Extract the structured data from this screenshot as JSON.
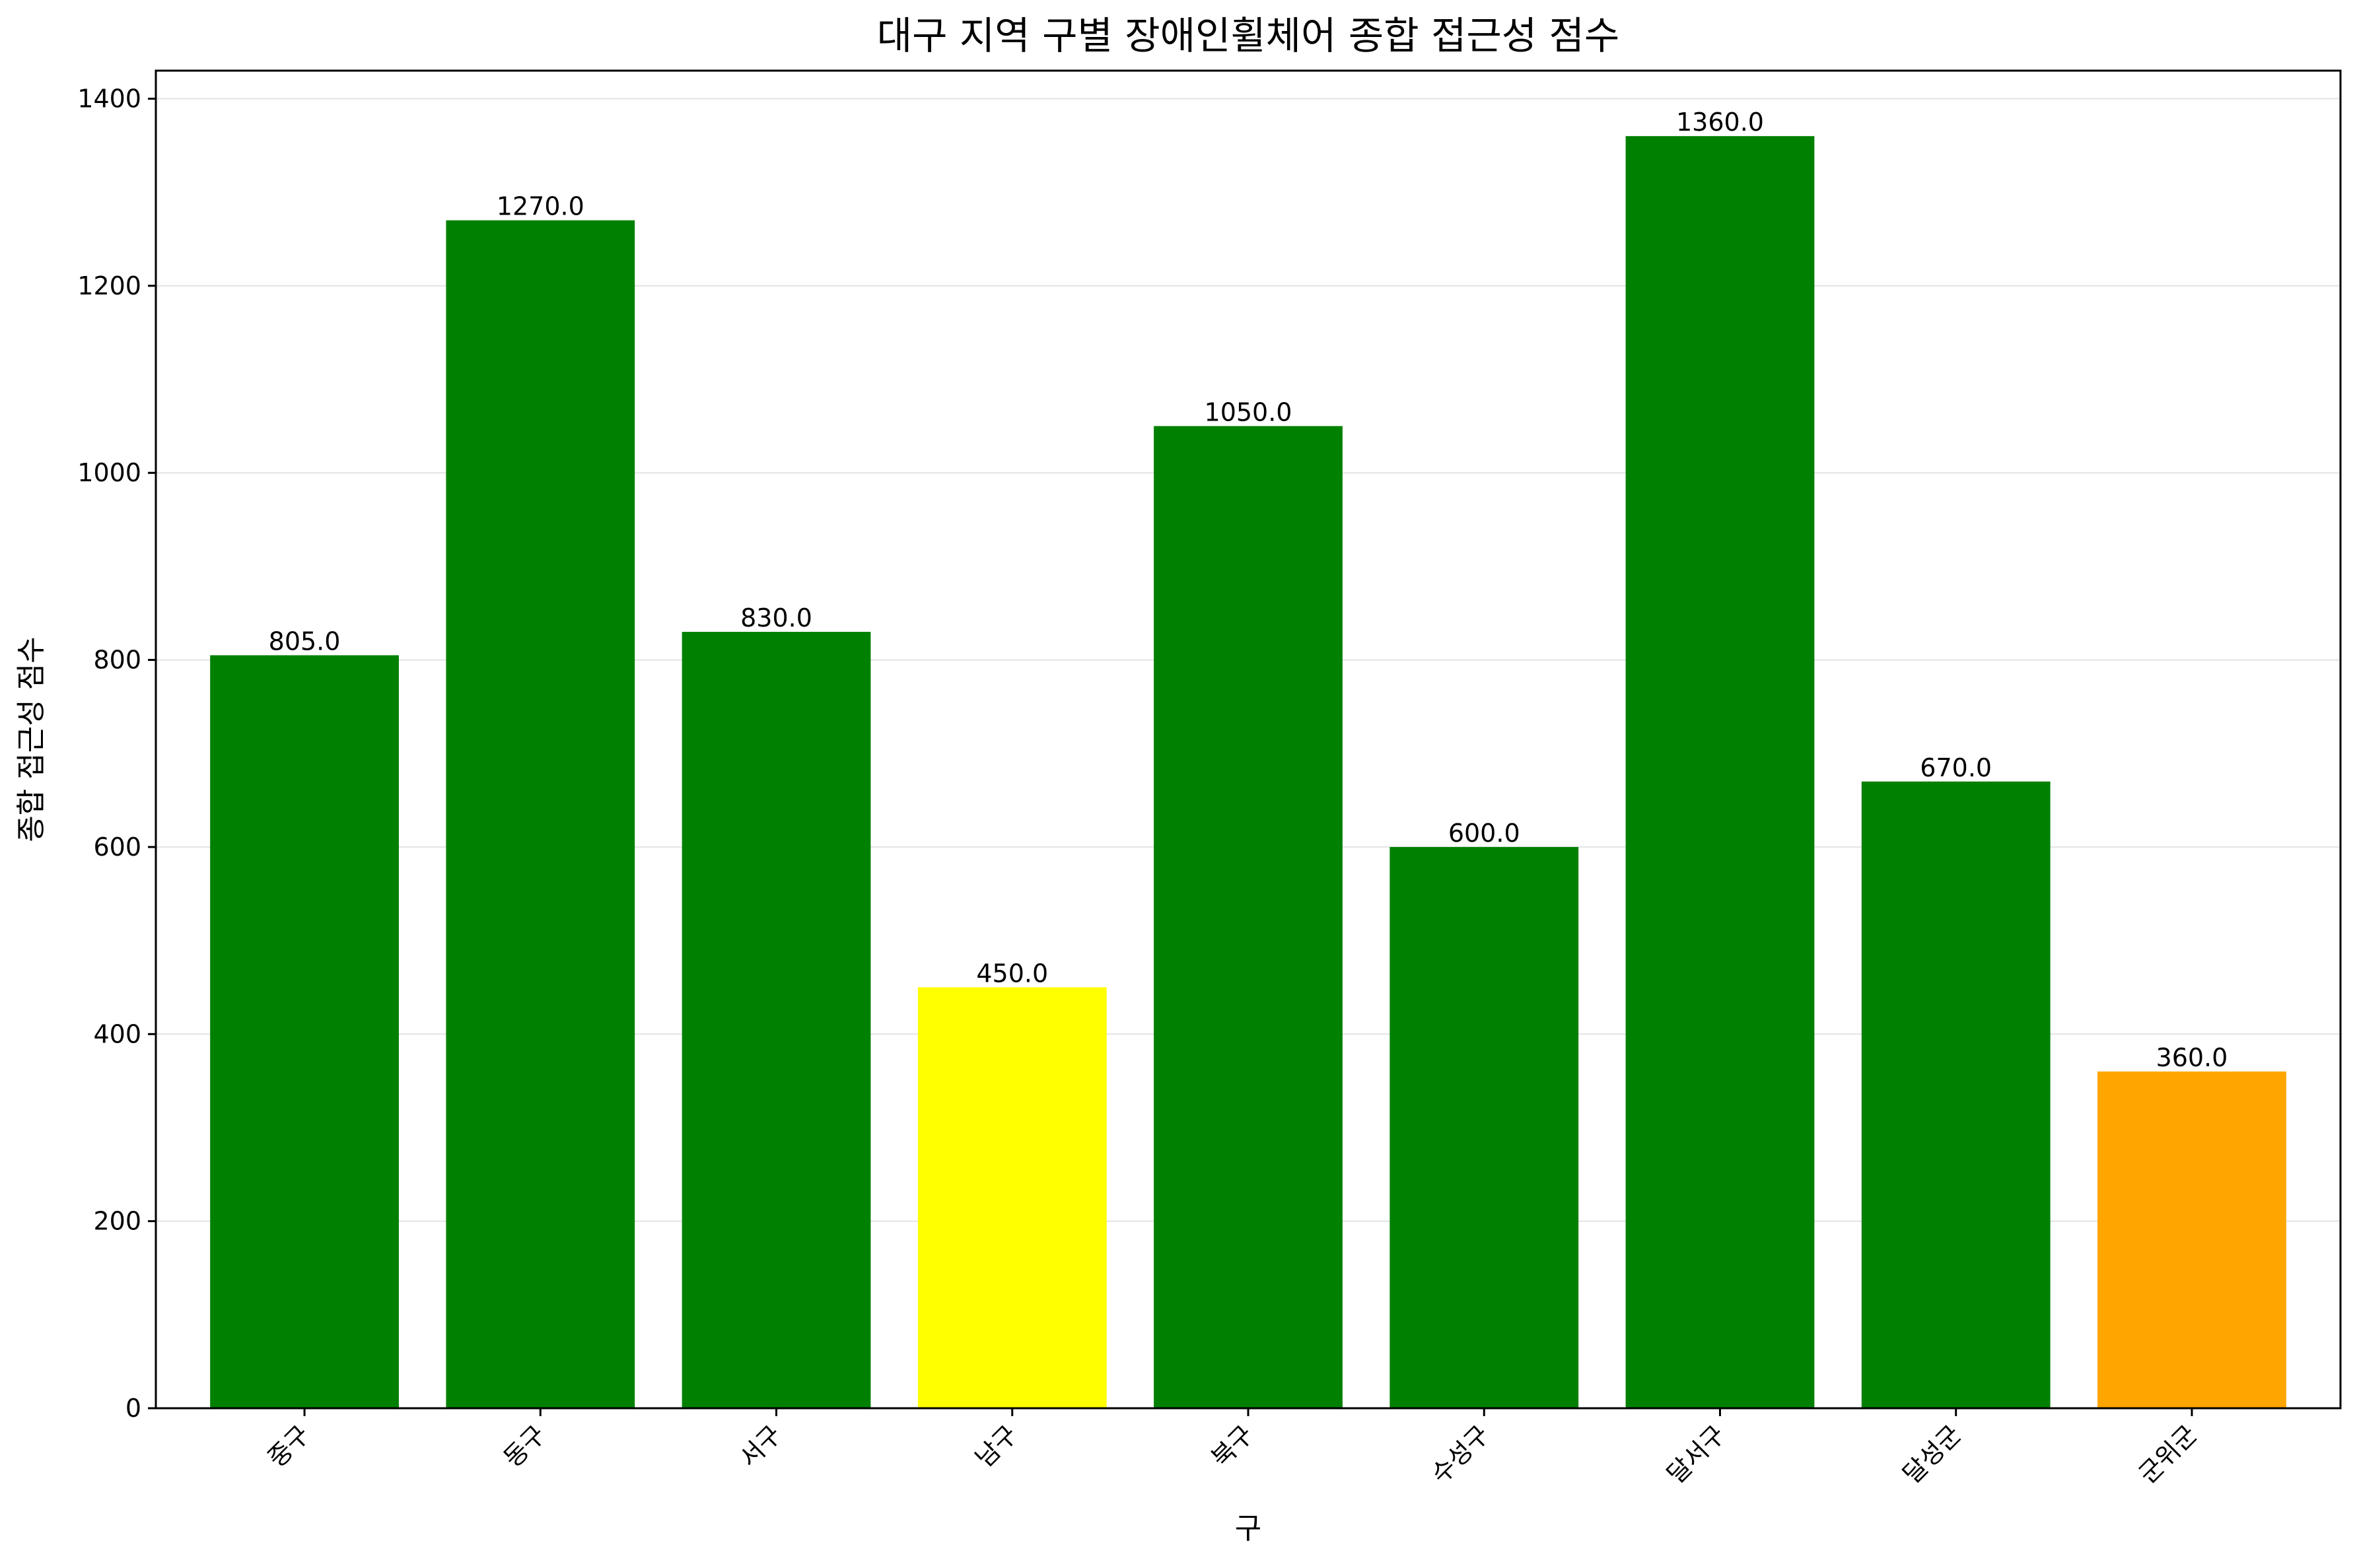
{
  "chart_data": {
    "type": "bar",
    "title": "대구 지역 구별 장애인휠체어 종합 접근성 점수",
    "xlabel": "구",
    "ylabel": "종합 접근성 점수",
    "categories": [
      "중구",
      "동구",
      "서구",
      "남구",
      "북구",
      "수성구",
      "달서구",
      "달성군",
      "군위군"
    ],
    "values": [
      805,
      1270,
      830,
      450,
      1050,
      600,
      1360,
      670,
      360
    ],
    "value_labels": [
      "805.0",
      "1270.0",
      "830.0",
      "450.0",
      "1050.0",
      "600.0",
      "1360.0",
      "670.0",
      "360.0"
    ],
    "bar_colors": [
      "#008000",
      "#008000",
      "#008000",
      "#ffff00",
      "#008000",
      "#008000",
      "#008000",
      "#008000",
      "#ffa500"
    ],
    "ylim": [
      0,
      1430
    ],
    "yticks": [
      0,
      200,
      400,
      600,
      800,
      1000,
      1200,
      1400
    ],
    "ytick_labels": [
      "0",
      "200",
      "400",
      "600",
      "800",
      "1000",
      "1200",
      "1400"
    ],
    "grid": "horizontal",
    "x_tick_rotation": -45
  }
}
